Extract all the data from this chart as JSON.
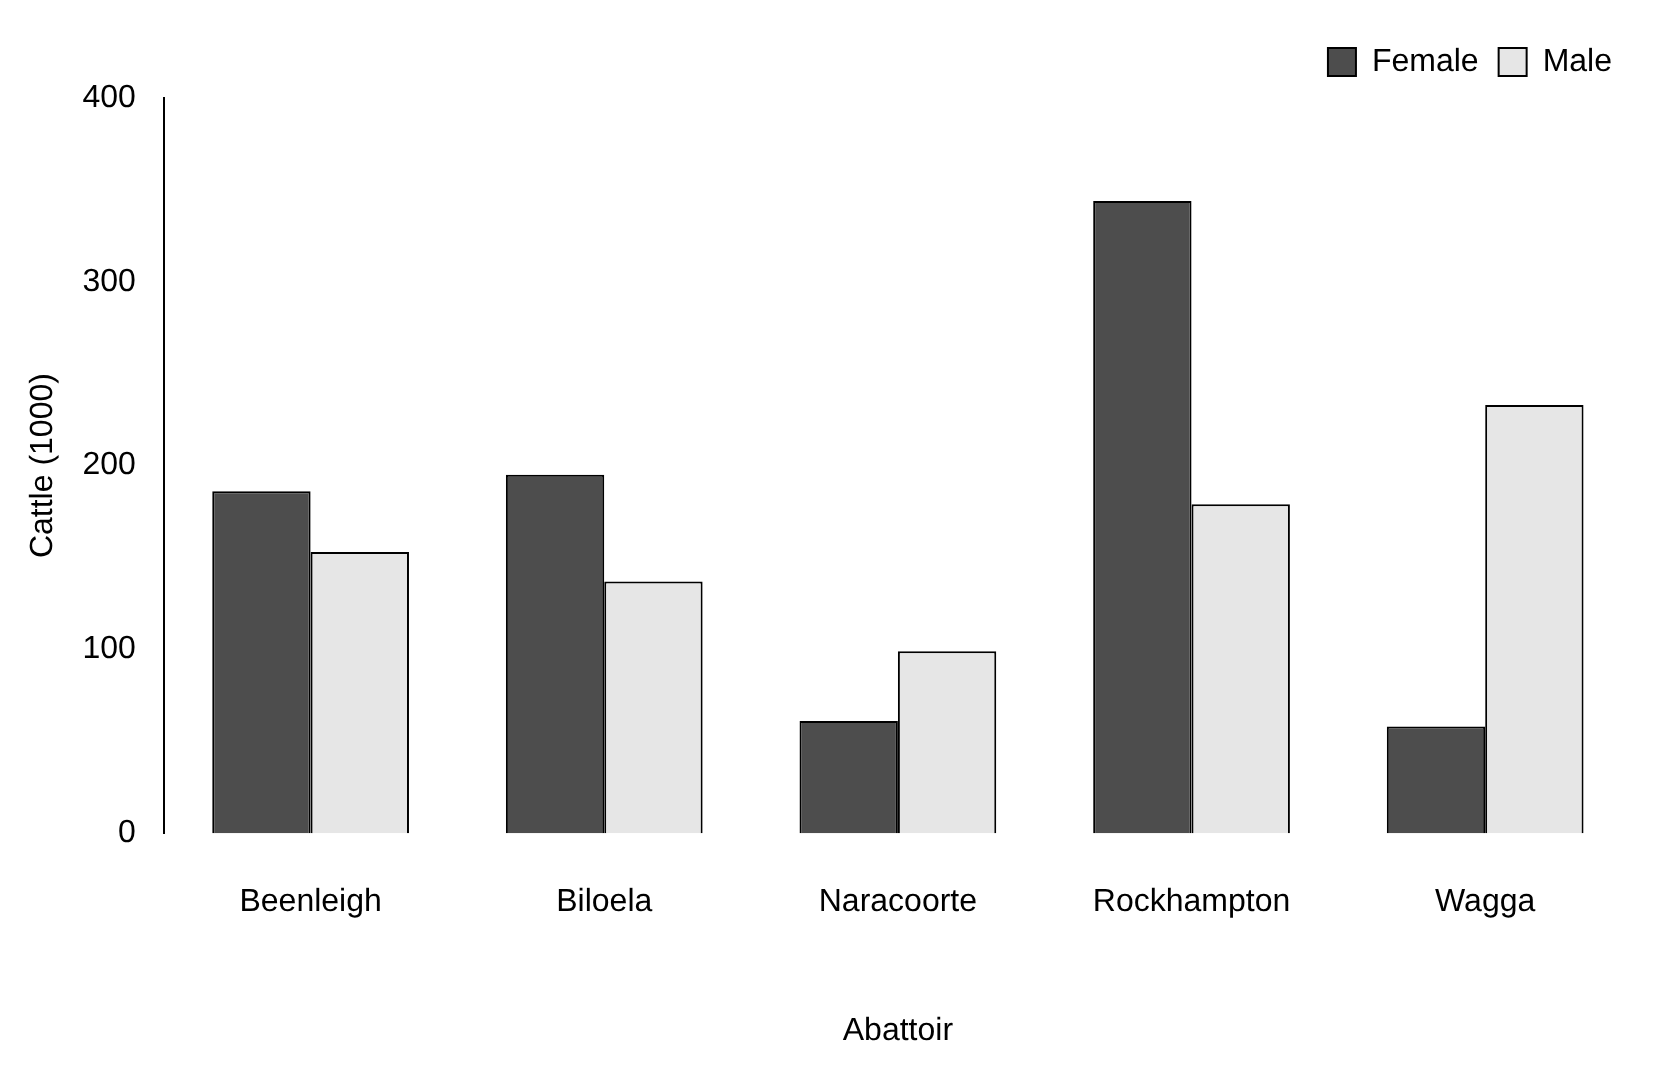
{
  "chart_data": {
    "type": "bar",
    "xlabel": "Abattoir",
    "ylabel": "Cattle (1000)",
    "categories": [
      "Beenleigh",
      "Biloela",
      "Naracoorte",
      "Rockhampton",
      "Wagga"
    ],
    "series": [
      {
        "name": "Female",
        "color": "#4d4d4d",
        "values": [
          186,
          195,
          61,
          344,
          58
        ]
      },
      {
        "name": "Male",
        "color": "#e6e6e6",
        "values": [
          153,
          137,
          99,
          179,
          233
        ]
      }
    ],
    "ylim": [
      0,
      400
    ],
    "yticks": [
      0,
      100,
      200,
      300,
      400
    ],
    "grid": false,
    "legend": "top right"
  }
}
